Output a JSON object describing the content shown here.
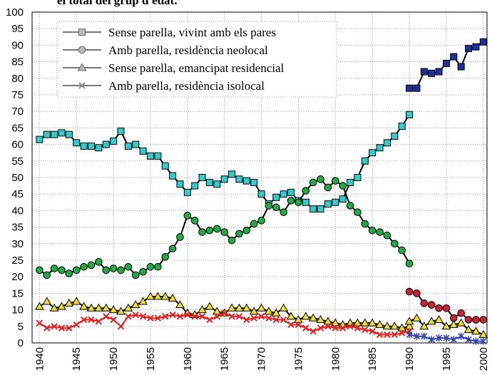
{
  "chart_data": {
    "type": "line",
    "title": "el total del grup d'edat.",
    "xlim": [
      1939,
      2000.5
    ],
    "ylim": [
      0,
      100
    ],
    "xticks": [
      1940,
      1945,
      1950,
      1955,
      1960,
      1965,
      1970,
      1975,
      1980,
      1985,
      1990,
      1995,
      2000
    ],
    "yticks": [
      0,
      5,
      10,
      15,
      20,
      25,
      30,
      35,
      40,
      45,
      50,
      55,
      60,
      65,
      70,
      75,
      80,
      85,
      90,
      95,
      100
    ],
    "grid": true,
    "legend": "upper-left",
    "series": [
      {
        "name": "Sense parella, vivint amb els pares",
        "marker": "square",
        "color": "#33cccc",
        "line_color": "#000000",
        "x": [
          1940,
          1941,
          1942,
          1943,
          1944,
          1945,
          1946,
          1947,
          1948,
          1949,
          1950,
          1951,
          1952,
          1953,
          1954,
          1955,
          1956,
          1957,
          1958,
          1959,
          1960,
          1961,
          1962,
          1963,
          1964,
          1965,
          1966,
          1967,
          1968,
          1969,
          1970,
          1971,
          1972,
          1973,
          1974,
          1975,
          1976,
          1977,
          1978,
          1979,
          1980,
          1981,
          1982,
          1983,
          1984,
          1985,
          1986,
          1987,
          1988,
          1989,
          1990
        ],
        "values": [
          61.5,
          63,
          63,
          63.5,
          63,
          60.5,
          59.5,
          59.5,
          59,
          60,
          61,
          64,
          59.5,
          60,
          58,
          56.5,
          56.5,
          53.5,
          50.5,
          48,
          45.5,
          47.5,
          50,
          48.5,
          48,
          49.5,
          51,
          49.5,
          49,
          48.5,
          45,
          42,
          44,
          45,
          45.5,
          43,
          42.5,
          40.5,
          40.5,
          42,
          42.5,
          43.5,
          48.5,
          50,
          55,
          57.5,
          59,
          60.5,
          62.5,
          65.5,
          69
        ]
      },
      {
        "name": "Amb parella, residència neolocal",
        "marker": "circle",
        "color": "#22aa44",
        "line_color": "#000000",
        "x": [
          1940,
          1941,
          1942,
          1943,
          1944,
          1945,
          1946,
          1947,
          1948,
          1949,
          1950,
          1951,
          1952,
          1953,
          1954,
          1955,
          1956,
          1957,
          1958,
          1959,
          1960,
          1961,
          1962,
          1963,
          1964,
          1965,
          1966,
          1967,
          1968,
          1969,
          1970,
          1971,
          1972,
          1973,
          1974,
          1975,
          1976,
          1977,
          1978,
          1979,
          1980,
          1981,
          1982,
          1983,
          1984,
          1985,
          1986,
          1987,
          1988,
          1989,
          1990
        ],
        "values": [
          22,
          20.5,
          22.5,
          22,
          21,
          22,
          23,
          23.5,
          24.5,
          22,
          22.5,
          22,
          23,
          20.5,
          21.5,
          23,
          23,
          26,
          28.5,
          32,
          38.5,
          37,
          33.5,
          34,
          34.5,
          33.5,
          31,
          33,
          34,
          36,
          37,
          41.5,
          41,
          39.5,
          43,
          42.5,
          46,
          48.5,
          49.5,
          47,
          49,
          47.5,
          41.5,
          39.5,
          36,
          34,
          33.5,
          32.5,
          30,
          28,
          24
        ]
      },
      {
        "name": "Sense parella, emancipat residencial",
        "marker": "triangle",
        "color": "#eedd33",
        "line_color": "#000000",
        "x": [
          1940,
          1941,
          1942,
          1943,
          1944,
          1945,
          1946,
          1947,
          1948,
          1949,
          1950,
          1951,
          1952,
          1953,
          1954,
          1955,
          1956,
          1957,
          1958,
          1959,
          1960,
          1961,
          1962,
          1963,
          1964,
          1965,
          1966,
          1967,
          1968,
          1969,
          1970,
          1971,
          1972,
          1973,
          1974,
          1975,
          1976,
          1977,
          1978,
          1979,
          1980,
          1981,
          1982,
          1983,
          1984,
          1985,
          1986,
          1987,
          1988,
          1989,
          1990
        ],
        "values": [
          11,
          12.5,
          10.5,
          11,
          12,
          12.5,
          11,
          10.5,
          10.5,
          10.5,
          10,
          9.5,
          10.5,
          11.5,
          12.5,
          14,
          14,
          14,
          13.5,
          11.5,
          9,
          8.5,
          10,
          11,
          9.5,
          9,
          10.5,
          10.5,
          10.5,
          9.5,
          10.5,
          9.5,
          9,
          10.5,
          8,
          7,
          8,
          7.5,
          7,
          6.5,
          6,
          5.5,
          6,
          6,
          6,
          6,
          5.5,
          5,
          5,
          4.5,
          5
        ]
      },
      {
        "name": "Amb parella, residència isolocal",
        "marker": "x",
        "color": "#dd2222",
        "line_color": "#dd2222",
        "x": [
          1940,
          1941,
          1942,
          1943,
          1944,
          1945,
          1946,
          1947,
          1948,
          1949,
          1950,
          1951,
          1952,
          1953,
          1954,
          1955,
          1956,
          1957,
          1958,
          1959,
          1960,
          1961,
          1962,
          1963,
          1964,
          1965,
          1966,
          1967,
          1968,
          1969,
          1970,
          1971,
          1972,
          1973,
          1974,
          1975,
          1976,
          1977,
          1978,
          1979,
          1980,
          1981,
          1982,
          1983,
          1984,
          1985,
          1986,
          1987,
          1988,
          1989,
          1990
        ],
        "values": [
          6,
          4.5,
          5,
          4.5,
          4.5,
          5.5,
          7,
          7,
          6.5,
          8,
          7,
          5,
          8,
          8.5,
          8,
          7.5,
          7.5,
          8,
          8.5,
          8,
          8.5,
          8,
          8,
          7,
          8,
          9,
          8,
          8,
          7,
          7.5,
          8,
          7.5,
          7,
          7,
          5.5,
          5.5,
          4.5,
          3.5,
          4.5,
          5,
          4.5,
          4.5,
          5,
          4.5,
          4,
          3.5,
          2.5,
          2.5,
          2.5,
          3,
          3.5
        ]
      },
      {
        "marker": "square",
        "color": "#1f2f9f",
        "line_color": "#000000",
        "x": [
          1990,
          1991,
          1992,
          1993,
          1994,
          1995,
          1996,
          1997,
          1998,
          1999,
          2000
        ],
        "values": [
          77,
          77,
          82,
          81.5,
          82,
          84.5,
          86.5,
          83.5,
          89,
          89.5,
          91
        ]
      },
      {
        "marker": "circle",
        "color": "#cc2233",
        "line_color": "#000000",
        "x": [
          1990,
          1991,
          1992,
          1993,
          1994,
          1995,
          1996,
          1997,
          1998,
          1999,
          2000
        ],
        "values": [
          15.5,
          15,
          12,
          11.5,
          10.5,
          10.5,
          7.5,
          9,
          7,
          7,
          7
        ]
      },
      {
        "marker": "triangle",
        "color": "#eedd33",
        "line_color": "#000000",
        "x": [
          1990,
          1991,
          1992,
          1993,
          1994,
          1995,
          1996,
          1997,
          1998,
          1999,
          2000
        ],
        "values": [
          6.5,
          7.5,
          5,
          6.5,
          7,
          5,
          5.5,
          6,
          4,
          3.5,
          2.5
        ]
      },
      {
        "marker": "star",
        "color": "#3344aa",
        "line_color": "#3344aa",
        "x": [
          1990,
          1991,
          1992,
          1993,
          1994,
          1995,
          1996,
          1997,
          1998,
          1999,
          2000
        ],
        "values": [
          2.5,
          2,
          2,
          1,
          1.5,
          1.5,
          1,
          2,
          1,
          0.5,
          0.5
        ]
      }
    ]
  }
}
